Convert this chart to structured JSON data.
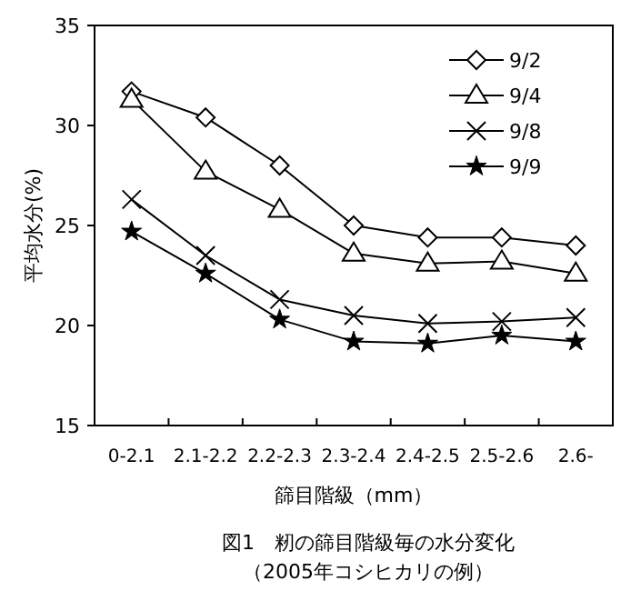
{
  "chart_data": {
    "type": "line",
    "title": "図1　籾の篩目階級毎の水分変化",
    "subtitle": "（2005年コシヒカリの例）",
    "xlabel": "篩目階級（mm）",
    "ylabel": "平均水分(%)",
    "categories": [
      "0-2.1",
      "2.1-2.2",
      "2.2-2.3",
      "2.3-2.4",
      "2.4-2.5",
      "2.5-2.6",
      "2.6-"
    ],
    "ylim": [
      15,
      35
    ],
    "yticks": [
      15,
      20,
      25,
      30,
      35
    ],
    "grid": false,
    "legend": "top right",
    "line_style": "solid",
    "series": [
      {
        "name": "9/2",
        "color": "#000000",
        "marker": "diamond",
        "values": [
          31.7,
          30.4,
          28.0,
          25.0,
          24.4,
          24.4,
          24.0
        ]
      },
      {
        "name": "9/4",
        "color": "#000000",
        "marker": "triangle",
        "values": [
          31.3,
          27.7,
          25.8,
          23.6,
          23.1,
          23.2,
          22.6
        ]
      },
      {
        "name": "9/8",
        "color": "#000000",
        "marker": "cross",
        "values": [
          26.3,
          23.5,
          21.3,
          20.5,
          20.1,
          20.2,
          20.4
        ]
      },
      {
        "name": "9/9",
        "color": "#000000",
        "marker": "star",
        "values": [
          24.7,
          22.6,
          20.3,
          19.2,
          19.1,
          19.5,
          19.2
        ]
      }
    ]
  }
}
